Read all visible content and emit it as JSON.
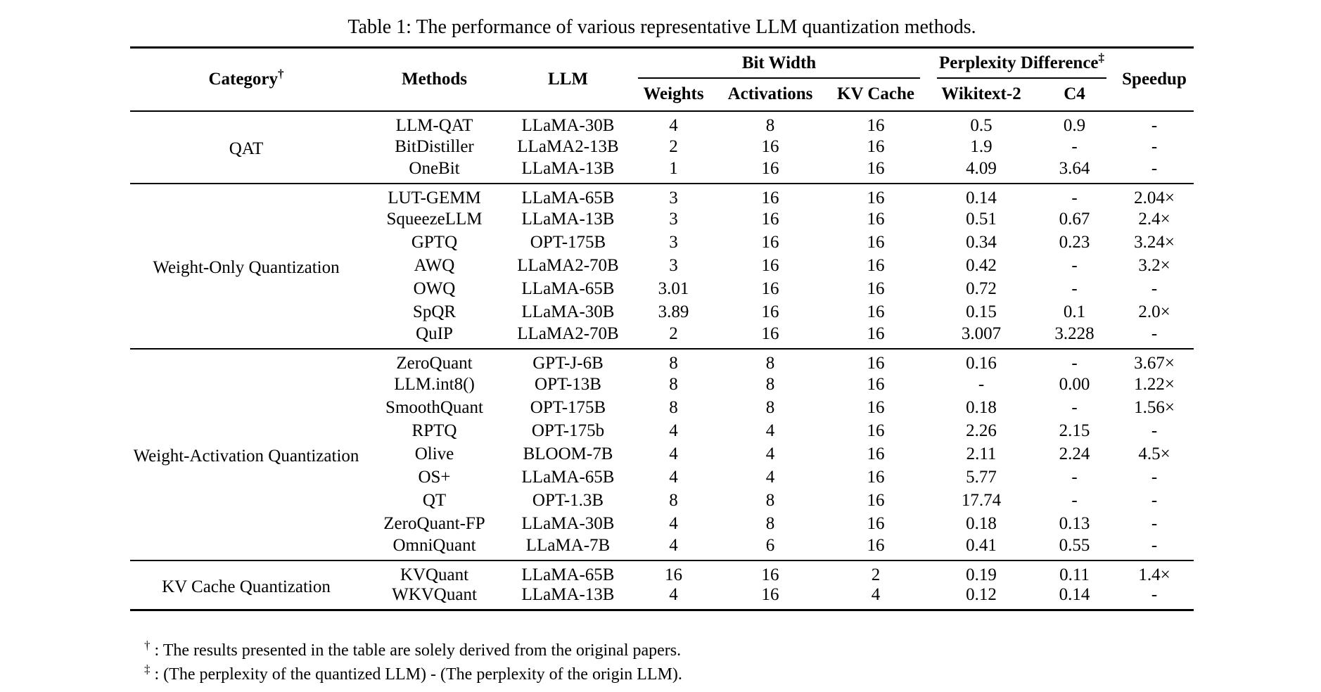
{
  "title": "Table 1: The performance of various representative LLM quantization methods.",
  "table": {
    "headers": {
      "category": "Category",
      "category_sup": "†",
      "methods": "Methods",
      "llm": "LLM",
      "bit_width_group": "Bit Width",
      "weights": "Weights",
      "activations": "Activations",
      "kv_cache": "KV Cache",
      "perplexity_group": "Perplexity Difference",
      "perplexity_sup": "‡",
      "wikitext": "Wikitext-2",
      "c4": "C4",
      "speedup": "Speedup"
    },
    "groups": [
      {
        "category": "QAT",
        "rows": [
          [
            "LLM-QAT",
            "LLaMA-30B",
            "4",
            "8",
            "16",
            "0.5",
            "0.9",
            "-"
          ],
          [
            "BitDistiller",
            "LLaMA2-13B",
            "2",
            "16",
            "16",
            "1.9",
            "-",
            "-"
          ],
          [
            "OneBit",
            "LLaMA-13B",
            "1",
            "16",
            "16",
            "4.09",
            "3.64",
            "-"
          ]
        ]
      },
      {
        "category": "Weight-Only Quantization",
        "rows": [
          [
            "LUT-GEMM",
            "LLaMA-65B",
            "3",
            "16",
            "16",
            "0.14",
            "-",
            "2.04×"
          ],
          [
            "SqueezeLLM",
            "LLaMA-13B",
            "3",
            "16",
            "16",
            "0.51",
            "0.67",
            "2.4×"
          ],
          [
            "GPTQ",
            "OPT-175B",
            "3",
            "16",
            "16",
            "0.34",
            "0.23",
            "3.24×"
          ],
          [
            "AWQ",
            "LLaMA2-70B",
            "3",
            "16",
            "16",
            "0.42",
            "-",
            "3.2×"
          ],
          [
            "OWQ",
            "LLaMA-65B",
            "3.01",
            "16",
            "16",
            "0.72",
            "-",
            "-"
          ],
          [
            "SpQR",
            "LLaMA-30B",
            "3.89",
            "16",
            "16",
            "0.15",
            "0.1",
            "2.0×"
          ],
          [
            "QuIP",
            "LLaMA2-70B",
            "2",
            "16",
            "16",
            "3.007",
            "3.228",
            "-"
          ]
        ]
      },
      {
        "category": "Weight-Activation Quantization",
        "rows": [
          [
            "ZeroQuant",
            "GPT-J-6B",
            "8",
            "8",
            "16",
            "0.16",
            "-",
            "3.67×"
          ],
          [
            "LLM.int8()",
            "OPT-13B",
            "8",
            "8",
            "16",
            "-",
            "0.00",
            "1.22×"
          ],
          [
            "SmoothQuant",
            "OPT-175B",
            "8",
            "8",
            "16",
            "0.18",
            "-",
            "1.56×"
          ],
          [
            "RPTQ",
            "OPT-175b",
            "4",
            "4",
            "16",
            "2.26",
            "2.15",
            "-"
          ],
          [
            "Olive",
            "BLOOM-7B",
            "4",
            "4",
            "16",
            "2.11",
            "2.24",
            "4.5×"
          ],
          [
            "OS+",
            "LLaMA-65B",
            "4",
            "4",
            "16",
            "5.77",
            "-",
            "-"
          ],
          [
            "QT",
            "OPT-1.3B",
            "8",
            "8",
            "16",
            "17.74",
            "-",
            "-"
          ],
          [
            "ZeroQuant-FP",
            "LLaMA-30B",
            "4",
            "8",
            "16",
            "0.18",
            "0.13",
            "-"
          ],
          [
            "OmniQuant",
            "LLaMA-7B",
            "4",
            "6",
            "16",
            "0.41",
            "0.55",
            "-"
          ]
        ]
      },
      {
        "category": "KV Cache Quantization",
        "rows": [
          [
            "KVQuant",
            "LLaMA-65B",
            "16",
            "16",
            "2",
            "0.19",
            "0.11",
            "1.4×"
          ],
          [
            "WKVQuant",
            "LLaMA-13B",
            "4",
            "16",
            "4",
            "0.12",
            "0.14",
            "-"
          ]
        ]
      }
    ],
    "footnotes": [
      {
        "symbol": "†",
        "text": ": The results presented in the table are solely derived from the original papers."
      },
      {
        "symbol": "‡",
        "text": ": (The perplexity of the quantized LLM) - (The perplexity of the origin LLM)."
      }
    ]
  },
  "colors": {
    "text": "#000000",
    "background": "#ffffff",
    "rule": "#000000"
  }
}
